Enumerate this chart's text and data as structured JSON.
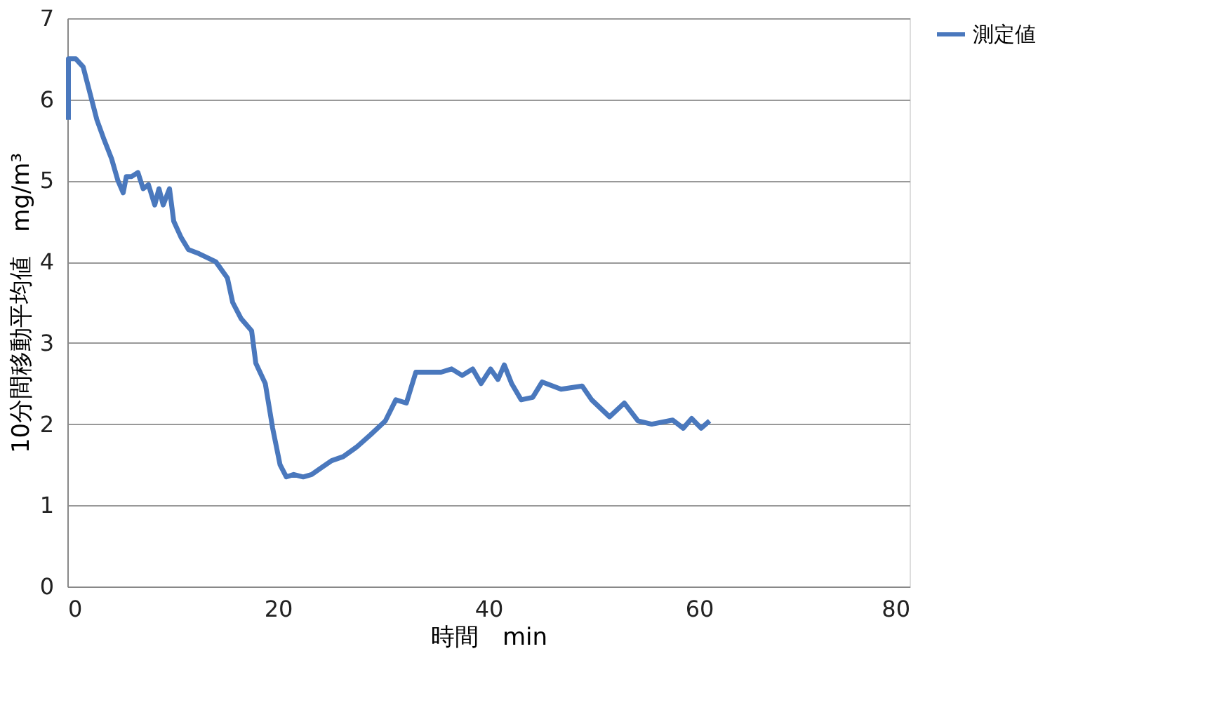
{
  "chart_data": {
    "type": "line",
    "xlabel": "時間　min",
    "ylabel": "10分間移動平均値　mg/m³",
    "xlim": [
      0,
      80
    ],
    "xticks": [
      0,
      20,
      40,
      60,
      80
    ],
    "ylim": [
      0,
      7
    ],
    "yticks": [
      0,
      1,
      2,
      3,
      4,
      5,
      6,
      7
    ],
    "grid": "y",
    "legend": "right",
    "marker": "none",
    "line_style": "solid",
    "series": [
      {
        "name": "測定値",
        "color": "#4a78bd",
        "x": [
          0.1,
          0.1,
          0.8,
          1.5,
          2.1,
          2.8,
          3.5,
          4.2,
          4.8,
          5.3,
          5.6,
          6.1,
          6.7,
          7.2,
          7.7,
          8.3,
          8.7,
          9.1,
          9.7,
          10.1,
          10.8,
          11.5,
          12.5,
          14.1,
          15.2,
          15.7,
          16.5,
          17.5,
          17.9,
          18.8,
          19.5,
          20.2,
          20.8,
          21.5,
          22.4,
          23.2,
          24.2,
          25.1,
          26.2,
          27.5,
          28.8,
          30.2,
          31.2,
          32.2,
          33.1,
          34.2,
          35.5,
          36.5,
          37.5,
          38.5,
          39.3,
          40.2,
          40.9,
          41.5,
          42.2,
          43.1,
          44.2,
          45.1,
          46.9,
          48.9,
          49.8,
          51.5,
          52.9,
          54.2,
          55.5,
          57.5,
          58.5,
          59.3,
          60.2,
          61.0
        ],
        "values": [
          5.75,
          6.5,
          6.5,
          6.4,
          6.1,
          5.75,
          5.5,
          5.27,
          5.0,
          4.85,
          5.05,
          5.05,
          5.1,
          4.9,
          4.95,
          4.7,
          4.9,
          4.7,
          4.9,
          4.5,
          4.3,
          4.15,
          4.1,
          4.0,
          3.8,
          3.5,
          3.3,
          3.15,
          2.75,
          2.5,
          1.95,
          1.5,
          1.35,
          1.38,
          1.35,
          1.38,
          1.47,
          1.55,
          1.6,
          1.72,
          1.87,
          2.04,
          2.3,
          2.26,
          2.64,
          2.64,
          2.64,
          2.68,
          2.6,
          2.68,
          2.5,
          2.68,
          2.55,
          2.73,
          2.5,
          2.3,
          2.33,
          2.52,
          2.43,
          2.47,
          2.3,
          2.09,
          2.26,
          2.04,
          2.0,
          2.05,
          1.95,
          2.07,
          1.95,
          2.04
        ]
      }
    ]
  }
}
